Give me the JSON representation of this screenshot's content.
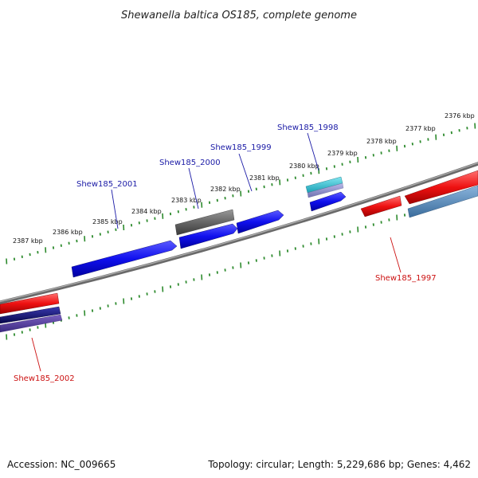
{
  "title": "Shewanella baltica OS185, complete genome",
  "footer": {
    "accession": "Accession: NC_009665",
    "summary": "Topology: circular; Length: 5,229,686 bp; Genes: 4,462"
  },
  "colors": {
    "backbone": "#888888",
    "ticks": "#2e8b2e",
    "label_forward": "#1a1aa6",
    "label_reverse": "#cc1111",
    "gene_blue": "#1010ee",
    "gene_red": "#ee1111",
    "gene_gray": "#666666",
    "gene_cyan": "#22bbcc",
    "gene_steel": "#4f86b8",
    "gene_navy": "#101080"
  },
  "tick_labels": [
    "2376 kbp",
    "2377 kbp",
    "2378 kbp",
    "2379 kbp",
    "2380 kbp",
    "2381 kbp",
    "2382 kbp",
    "2383 kbp",
    "2384 kbp",
    "2385 kbp",
    "2386 kbp",
    "2387 kbp"
  ],
  "gene_labels": {
    "g1998": "Shew185_1998",
    "g1999": "Shew185_1999",
    "g2000": "Shew185_2000",
    "g2001": "Shew185_2001",
    "g1997": "Shew185_1997",
    "g2002": "Shew185_2002"
  }
}
